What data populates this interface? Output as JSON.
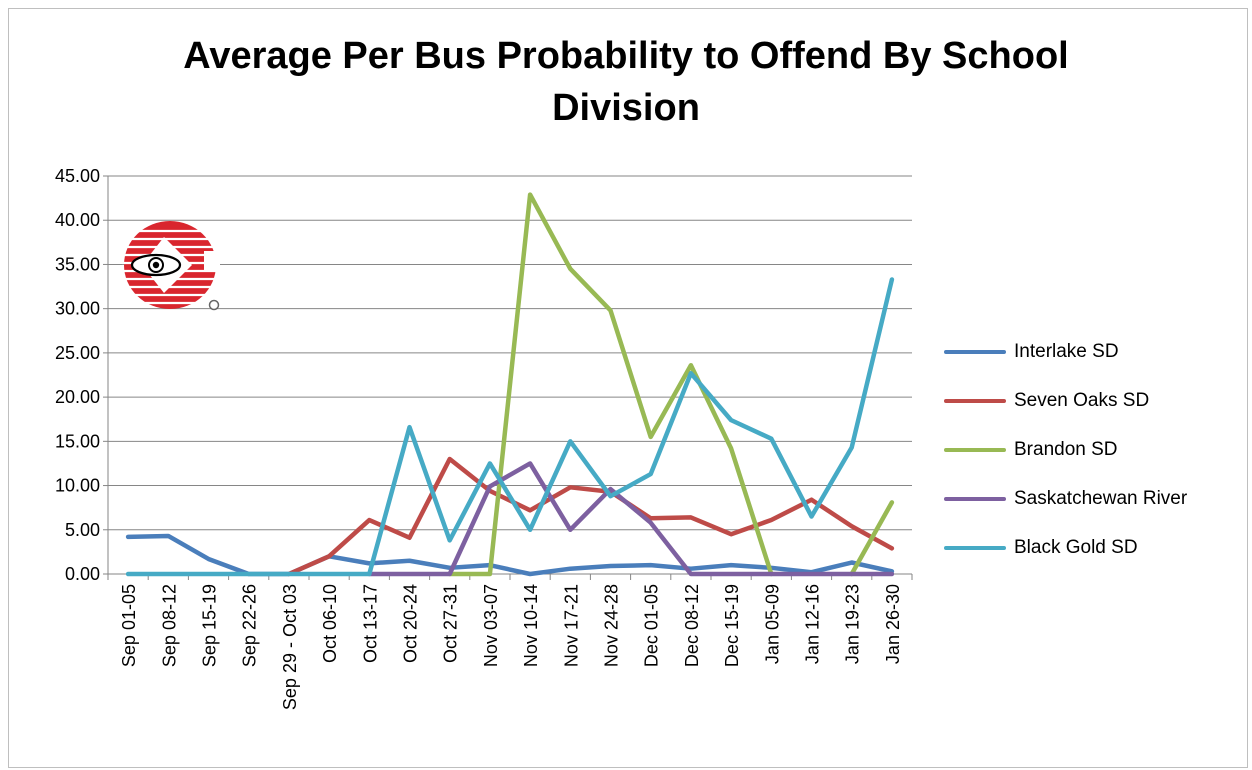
{
  "chart_data": {
    "type": "line",
    "title_line1": "Average Per Bus Probability to Offend By School",
    "title_line2": "Division",
    "xlabel": "",
    "ylabel": "",
    "ylim": [
      0,
      45
    ],
    "y_ticks": [
      "0.00",
      "5.00",
      "10.00",
      "15.00",
      "20.00",
      "25.00",
      "30.00",
      "35.00",
      "40.00",
      "45.00"
    ],
    "categories": [
      "Sep 01-05",
      "Sep 08-12",
      "Sep 15-19",
      "Sep 22-26",
      "Sep 29 - Oct 03",
      "Oct 06-10",
      "Oct 13-17",
      "Oct 20-24",
      "Oct 27-31",
      "Nov 03-07",
      "Nov 10-14",
      "Nov 17-21",
      "Nov 24-28",
      "Dec 01-05",
      "Dec 08-12",
      "Dec 15-19",
      "Jan 05-09",
      "Jan 12-16",
      "Jan 19-23",
      "Jan 26-30"
    ],
    "grid": true,
    "legend_position": "right",
    "series": [
      {
        "name": "Interlake SD",
        "color": "#4a7ebb",
        "values": [
          4.2,
          4.3,
          1.7,
          0,
          0,
          2.0,
          1.2,
          1.5,
          0.7,
          1.0,
          0,
          0.6,
          0.9,
          1.0,
          0.6,
          1.0,
          0.7,
          0.2,
          1.3,
          0.3
        ]
      },
      {
        "name": "Seven Oaks SD",
        "color": "#be4b48",
        "values": [
          null,
          null,
          null,
          null,
          0,
          2.0,
          6.1,
          4.1,
          13.0,
          9.4,
          7.2,
          9.8,
          9.3,
          6.3,
          6.4,
          4.5,
          6.1,
          8.4,
          5.4,
          2.9
        ]
      },
      {
        "name": "Brandon SD",
        "color": "#98b954",
        "values": [
          null,
          null,
          null,
          null,
          null,
          null,
          null,
          null,
          0,
          0,
          42.9,
          34.5,
          29.8,
          15.5,
          23.6,
          14.2,
          0,
          null,
          0,
          8.1
        ]
      },
      {
        "name": "Saskatchewan River",
        "color": "#7d60a0",
        "values": [
          null,
          null,
          null,
          null,
          null,
          null,
          0,
          0,
          0,
          9.9,
          12.5,
          5.0,
          9.6,
          5.8,
          0,
          0,
          0,
          0,
          0,
          0
        ]
      },
      {
        "name": "Black Gold SD",
        "color": "#46aac5",
        "values": [
          0,
          0,
          0,
          0,
          0,
          0,
          0,
          16.6,
          3.8,
          12.5,
          5.0,
          15.0,
          8.8,
          11.3,
          22.7,
          17.4,
          15.3,
          6.5,
          14.3,
          33.3
        ]
      }
    ]
  },
  "logo_icon": "eye-logo-icon"
}
